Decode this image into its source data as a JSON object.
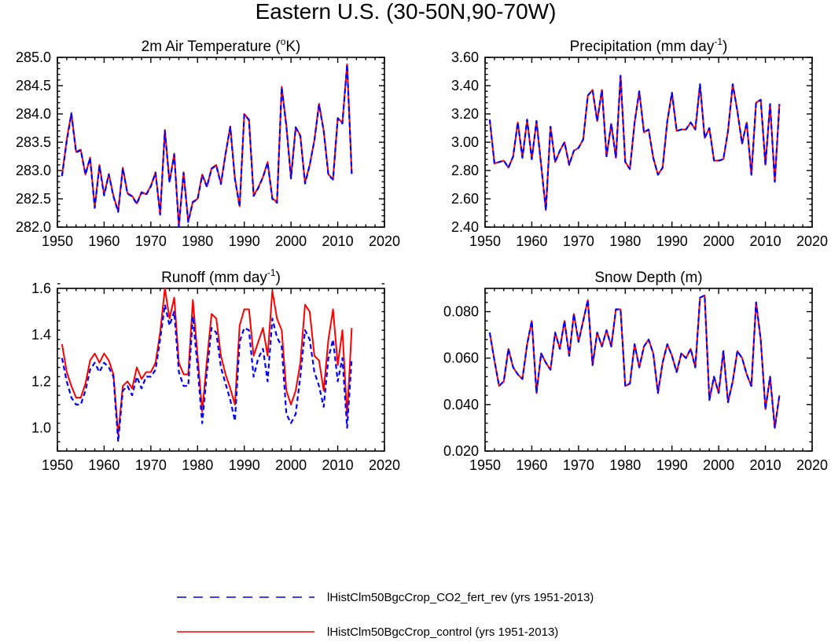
{
  "figure": {
    "title": "Eastern U.S. (30-50N,90-70W)"
  },
  "legend": {
    "entries": [
      {
        "label": "lHistClm50BgcCrop_CO2_fert_rev (yrs 1951-2013)",
        "color": "#0000ff",
        "style": "dashed"
      },
      {
        "label": "lHistClm50BgcCrop_control (yrs 1951-2013)",
        "color": "#ff0000",
        "style": "solid"
      }
    ]
  },
  "chart_data": [
    {
      "type": "line",
      "title": "2m Air Temperature (oK)",
      "title_parts": {
        "main": "2m Air Temperature (",
        "sup": "o",
        "tail": "K)"
      },
      "xlim": [
        1950,
        2020
      ],
      "xticks": [
        1950,
        1960,
        1970,
        1980,
        1990,
        2000,
        2010,
        2020
      ],
      "ylim": [
        282.0,
        285.0
      ],
      "yticks": [
        282.0,
        282.5,
        283.0,
        283.5,
        284.0,
        284.5,
        285.0
      ],
      "ytick_decimals": 1,
      "x_start": 1951,
      "series": [
        {
          "name": "lHistClm50BgcCrop_control",
          "color": "#ff0000",
          "style": "solid",
          "values": [
            282.92,
            283.55,
            284.02,
            283.33,
            283.37,
            282.93,
            283.23,
            282.35,
            283.1,
            282.57,
            282.94,
            282.55,
            282.28,
            283.05,
            282.6,
            282.55,
            282.42,
            282.62,
            282.58,
            282.73,
            282.97,
            282.23,
            283.72,
            282.8,
            283.3,
            282.02,
            282.97,
            282.1,
            282.45,
            282.5,
            282.93,
            282.72,
            283.04,
            283.1,
            282.77,
            283.3,
            283.78,
            282.86,
            282.37,
            284.0,
            283.9,
            282.56,
            282.7,
            282.89,
            283.15,
            282.51,
            282.44,
            284.48,
            283.8,
            282.87,
            283.77,
            283.62,
            282.78,
            283.1,
            283.54,
            284.18,
            283.71,
            282.93,
            282.85,
            283.93,
            283.84,
            284.88,
            282.95
          ]
        },
        {
          "name": "lHistClm50BgcCrop_CO2_fert_rev",
          "color": "#0000ff",
          "style": "dashed",
          "values": [
            282.9,
            283.52,
            284.0,
            283.32,
            283.36,
            282.93,
            283.22,
            282.34,
            283.08,
            282.56,
            282.93,
            282.54,
            282.27,
            283.04,
            282.59,
            282.54,
            282.41,
            282.61,
            282.57,
            282.72,
            282.96,
            282.22,
            283.7,
            282.79,
            283.28,
            282.01,
            282.96,
            282.09,
            282.44,
            282.49,
            282.92,
            282.71,
            283.03,
            283.09,
            282.76,
            283.29,
            283.77,
            282.85,
            282.36,
            283.99,
            283.89,
            282.55,
            282.69,
            282.88,
            283.14,
            282.5,
            282.43,
            284.47,
            283.79,
            282.86,
            283.76,
            283.61,
            282.77,
            283.09,
            283.53,
            284.17,
            283.7,
            282.92,
            282.84,
            283.92,
            283.83,
            284.87,
            282.94
          ]
        }
      ]
    },
    {
      "type": "line",
      "title": "Precipitation (mm day-1)",
      "title_parts": {
        "main": "Precipitation (mm day",
        "sup": "-1",
        "tail": ")"
      },
      "xlim": [
        1950,
        2020
      ],
      "xticks": [
        1950,
        1960,
        1970,
        1980,
        1990,
        2000,
        2010,
        2020
      ],
      "ylim": [
        2.4,
        3.6
      ],
      "yticks": [
        2.4,
        2.6,
        2.8,
        3.0,
        3.2,
        3.4,
        3.6
      ],
      "ytick_decimals": 2,
      "x_start": 1951,
      "series": [
        {
          "name": "lHistClm50BgcCrop_control",
          "color": "#ff0000",
          "style": "solid",
          "values": [
            3.16,
            2.85,
            2.86,
            2.87,
            2.82,
            2.9,
            3.14,
            2.89,
            3.16,
            2.88,
            3.15,
            2.84,
            2.52,
            3.11,
            2.86,
            2.94,
            3.0,
            2.84,
            2.94,
            2.96,
            3.02,
            3.33,
            3.37,
            3.15,
            3.37,
            2.9,
            3.13,
            2.89,
            3.47,
            2.86,
            2.81,
            3.14,
            3.36,
            3.07,
            3.09,
            2.89,
            2.77,
            2.82,
            3.15,
            3.35,
            3.08,
            3.09,
            3.09,
            3.14,
            3.09,
            3.41,
            3.03,
            3.1,
            2.87,
            2.87,
            2.88,
            3.08,
            3.41,
            3.22,
            2.99,
            3.14,
            2.77,
            3.28,
            3.3,
            2.84,
            3.27,
            2.72,
            3.27
          ]
        },
        {
          "name": "lHistClm50BgcCrop_CO2_fert_rev",
          "color": "#0000ff",
          "style": "dashed",
          "values": [
            3.16,
            2.85,
            2.86,
            2.87,
            2.82,
            2.9,
            3.14,
            2.89,
            3.16,
            2.88,
            3.15,
            2.84,
            2.52,
            3.11,
            2.86,
            2.94,
            3.0,
            2.84,
            2.94,
            2.96,
            3.02,
            3.33,
            3.37,
            3.15,
            3.37,
            2.9,
            3.13,
            2.89,
            3.47,
            2.86,
            2.81,
            3.14,
            3.36,
            3.07,
            3.09,
            2.89,
            2.77,
            2.82,
            3.15,
            3.35,
            3.08,
            3.09,
            3.09,
            3.14,
            3.09,
            3.41,
            3.03,
            3.1,
            2.87,
            2.87,
            2.88,
            3.08,
            3.41,
            3.22,
            2.99,
            3.14,
            2.77,
            3.28,
            3.3,
            2.84,
            3.27,
            2.72,
            3.27
          ]
        }
      ]
    },
    {
      "type": "line",
      "title": "Runoff (mm day-1)",
      "title_parts": {
        "main": "Runoff (mm day",
        "sup": "-1",
        "tail": ")"
      },
      "xlim": [
        1950,
        2020
      ],
      "xticks": [
        1950,
        1960,
        1970,
        1980,
        1990,
        2000,
        2010,
        2020
      ],
      "ylim": [
        0.9,
        1.6
      ],
      "yticks": [
        1.0,
        1.2,
        1.4,
        1.6
      ],
      "ytick_decimals": 1,
      "x_start": 1951,
      "series": [
        {
          "name": "lHistClm50BgcCrop_control",
          "color": "#ff0000",
          "style": "solid",
          "values": [
            1.36,
            1.24,
            1.18,
            1.13,
            1.13,
            1.19,
            1.29,
            1.32,
            1.28,
            1.32,
            1.29,
            1.23,
            0.97,
            1.18,
            1.2,
            1.17,
            1.26,
            1.21,
            1.24,
            1.24,
            1.28,
            1.41,
            1.6,
            1.47,
            1.56,
            1.28,
            1.23,
            1.23,
            1.55,
            1.31,
            1.07,
            1.29,
            1.49,
            1.47,
            1.31,
            1.23,
            1.17,
            1.1,
            1.44,
            1.51,
            1.51,
            1.31,
            1.37,
            1.43,
            1.31,
            1.59,
            1.47,
            1.42,
            1.16,
            1.1,
            1.16,
            1.28,
            1.53,
            1.5,
            1.31,
            1.29,
            1.16,
            1.38,
            1.51,
            1.27,
            1.42,
            1.05,
            1.43
          ]
        },
        {
          "name": "lHistClm50BgcCrop_CO2_fert_rev",
          "color": "#0000ff",
          "style": "dashed",
          "values": [
            1.3,
            1.2,
            1.13,
            1.1,
            1.1,
            1.16,
            1.25,
            1.28,
            1.24,
            1.28,
            1.26,
            1.22,
            0.94,
            1.16,
            1.18,
            1.14,
            1.22,
            1.17,
            1.22,
            1.22,
            1.25,
            1.38,
            1.53,
            1.44,
            1.5,
            1.24,
            1.18,
            1.18,
            1.48,
            1.26,
            1.02,
            1.24,
            1.43,
            1.41,
            1.26,
            1.19,
            1.12,
            1.03,
            1.37,
            1.43,
            1.42,
            1.22,
            1.3,
            1.34,
            1.2,
            1.47,
            1.39,
            1.35,
            1.06,
            1.02,
            1.06,
            1.22,
            1.42,
            1.38,
            1.24,
            1.18,
            1.09,
            1.3,
            1.38,
            1.2,
            1.3,
            1.0,
            1.3
          ]
        }
      ]
    },
    {
      "type": "line",
      "title": "Snow Depth (m)",
      "title_parts": {
        "main": "Snow Depth (m)",
        "sup": "",
        "tail": ""
      },
      "xlim": [
        1950,
        2020
      ],
      "xticks": [
        1950,
        1960,
        1970,
        1980,
        1990,
        2000,
        2010,
        2020
      ],
      "ylim": [
        0.02,
        0.09
      ],
      "yticks": [
        0.02,
        0.04,
        0.06,
        0.08
      ],
      "ytick_decimals": 3,
      "x_start": 1951,
      "series": [
        {
          "name": "lHistClm50BgcCrop_control",
          "color": "#ff0000",
          "style": "solid",
          "values": [
            0.071,
            0.059,
            0.048,
            0.05,
            0.064,
            0.056,
            0.053,
            0.051,
            0.066,
            0.076,
            0.045,
            0.062,
            0.058,
            0.055,
            0.071,
            0.064,
            0.076,
            0.061,
            0.079,
            0.067,
            0.076,
            0.085,
            0.057,
            0.071,
            0.065,
            0.072,
            0.065,
            0.081,
            0.081,
            0.048,
            0.049,
            0.066,
            0.056,
            0.065,
            0.068,
            0.062,
            0.045,
            0.058,
            0.066,
            0.061,
            0.054,
            0.062,
            0.06,
            0.064,
            0.056,
            0.086,
            0.087,
            0.042,
            0.052,
            0.045,
            0.063,
            0.041,
            0.05,
            0.063,
            0.06,
            0.053,
            0.048,
            0.084,
            0.068,
            0.038,
            0.052,
            0.03,
            0.044
          ]
        },
        {
          "name": "lHistClm50BgcCrop_CO2_fert_rev",
          "color": "#0000ff",
          "style": "dashed",
          "values": [
            0.071,
            0.059,
            0.048,
            0.05,
            0.064,
            0.056,
            0.053,
            0.051,
            0.066,
            0.076,
            0.045,
            0.062,
            0.058,
            0.055,
            0.071,
            0.064,
            0.076,
            0.061,
            0.079,
            0.067,
            0.076,
            0.085,
            0.057,
            0.071,
            0.065,
            0.072,
            0.065,
            0.081,
            0.081,
            0.048,
            0.049,
            0.066,
            0.056,
            0.065,
            0.068,
            0.062,
            0.045,
            0.058,
            0.066,
            0.061,
            0.054,
            0.062,
            0.06,
            0.064,
            0.056,
            0.086,
            0.087,
            0.042,
            0.052,
            0.045,
            0.063,
            0.041,
            0.05,
            0.063,
            0.06,
            0.053,
            0.048,
            0.084,
            0.068,
            0.038,
            0.052,
            0.03,
            0.044
          ]
        }
      ]
    }
  ]
}
